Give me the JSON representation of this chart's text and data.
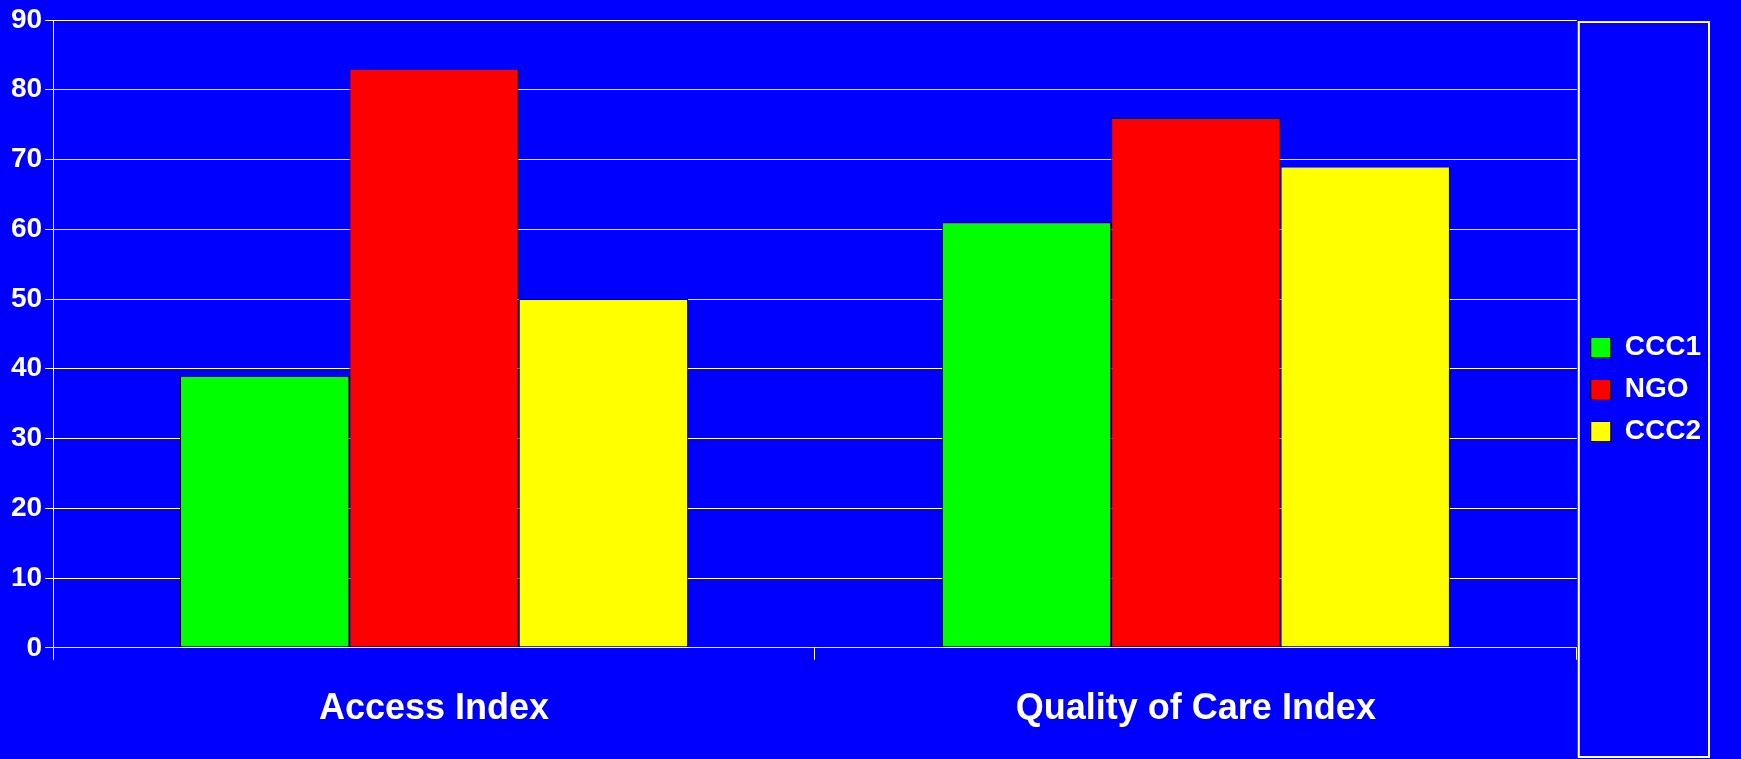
{
  "chart_data": {
    "type": "bar",
    "categories": [
      "Access Index",
      "Quality of Care Index"
    ],
    "series": [
      {
        "name": "CCC1",
        "color": "#00ff00",
        "values": [
          39,
          61
        ]
      },
      {
        "name": "NGO",
        "color": "#ff0000",
        "values": [
          83,
          76
        ]
      },
      {
        "name": "CCC2",
        "color": "#ffff00",
        "values": [
          50,
          69
        ]
      }
    ],
    "ylim": [
      0,
      90
    ],
    "yticks": [
      0,
      10,
      20,
      30,
      40,
      50,
      60,
      70,
      80,
      90
    ],
    "grid": "y",
    "legend": "right"
  }
}
